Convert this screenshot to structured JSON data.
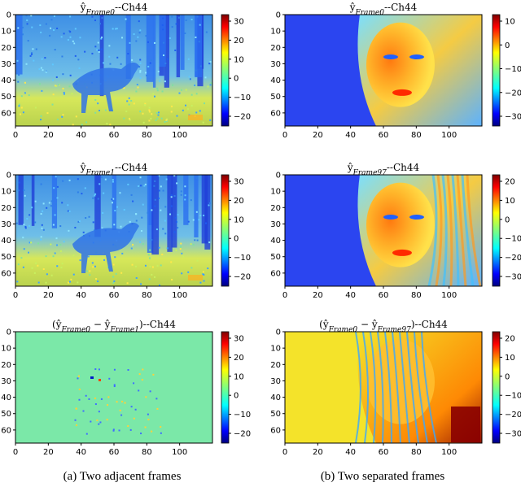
{
  "figure": {
    "captions": [
      "(a)  Two adjacent frames",
      "(b)  Two separated frames"
    ]
  },
  "panels": [
    {
      "title_parts": [
        "ŷ",
        "Frame0",
        "--Ch44"
      ],
      "x_ticks": [
        "0",
        "20",
        "40",
        "60",
        "80",
        "100"
      ],
      "y_ticks": [
        "0",
        "10",
        "20",
        "30",
        "40",
        "50",
        "60"
      ],
      "colorbar_ticks": [
        "30",
        "20",
        "10",
        "0",
        "−10",
        "−20"
      ],
      "content": "forest-wolf scene"
    },
    {
      "title_parts": [
        "ŷ",
        "Frame0",
        "--Ch44"
      ],
      "x_ticks": [
        "0",
        "20",
        "40",
        "60",
        "80",
        "100"
      ],
      "y_ticks": [
        "0",
        "10",
        "20",
        "30",
        "40",
        "50",
        "60"
      ],
      "colorbar_ticks": [
        "10",
        "0",
        "−10",
        "−20",
        "−30"
      ],
      "content": "portrait scene"
    },
    {
      "title_parts": [
        "ŷ",
        "Frame1",
        "--Ch44"
      ],
      "x_ticks": [
        "0",
        "20",
        "40",
        "60",
        "80",
        "100"
      ],
      "y_ticks": [
        "0",
        "10",
        "20",
        "30",
        "40",
        "50",
        "60"
      ],
      "colorbar_ticks": [
        "30",
        "20",
        "10",
        "0",
        "−10",
        "−20"
      ],
      "content": "forest-wolf scene"
    },
    {
      "title_parts": [
        "ŷ",
        "Frame97",
        "--Ch44"
      ],
      "x_ticks": [
        "0",
        "20",
        "40",
        "60",
        "80",
        "100"
      ],
      "y_ticks": [
        "0",
        "10",
        "20",
        "30",
        "40",
        "50",
        "60"
      ],
      "colorbar_ticks": [
        "20",
        "10",
        "0",
        "−10",
        "−20",
        "−30"
      ],
      "content": "portrait scene"
    },
    {
      "title_parts": [
        "(ŷ",
        "Frame0",
        " − ŷ",
        "Frame1",
        ")--Ch44"
      ],
      "x_ticks": [
        "0",
        "20",
        "40",
        "60",
        "80",
        "100"
      ],
      "y_ticks": [
        "0",
        "10",
        "20",
        "30",
        "40",
        "50",
        "60"
      ],
      "colorbar_ticks": [
        "30",
        "20",
        "10",
        "0",
        "−10",
        "−20"
      ],
      "content": "near-zero difference map"
    },
    {
      "title_parts": [
        "(ŷ",
        "Frame0",
        " − ŷ",
        "Frame97",
        ")--Ch44"
      ],
      "x_ticks": [
        "0",
        "20",
        "40",
        "60",
        "80",
        "100"
      ],
      "y_ticks": [
        "0",
        "10",
        "20",
        "30",
        "40",
        "50",
        "60"
      ],
      "colorbar_ticks": [
        "20",
        "10",
        "0",
        "−10",
        "−20",
        "−30"
      ],
      "content": "portrait difference map"
    }
  ],
  "colors": {
    "jet": [
      "#00007f",
      "#0000ff",
      "#007fff",
      "#00ffff",
      "#7fff7f",
      "#ffff00",
      "#ff7f00",
      "#ff0000",
      "#7f0000"
    ],
    "panel_base": [
      "#3e8fe6",
      "#2b45f0",
      "#3e8fe6",
      "#2b45f0",
      "#7be8a8",
      "#f4e32a"
    ]
  }
}
